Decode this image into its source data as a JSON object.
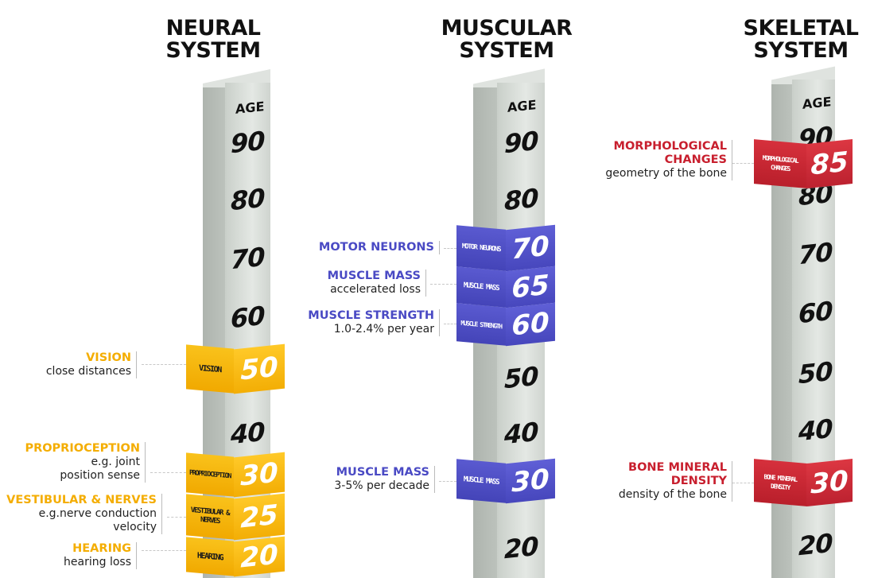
{
  "columns": [
    {
      "title_line1": "NEURAL",
      "title_line2": "SYSTEM",
      "age_label": "AGE",
      "ticks": [
        "90",
        "80",
        "70",
        "60",
        "40"
      ],
      "bands": [
        {
          "label": "VISION",
          "value": "50"
        },
        {
          "label": "PROPRIOCEPTION",
          "value": "30"
        },
        {
          "label": "VESTIBULAR & NERVES",
          "value": "25"
        },
        {
          "label": "HEARING",
          "value": "20"
        }
      ],
      "callouts": [
        {
          "heading": "VISION",
          "desc": "close distances"
        },
        {
          "heading": "PROPRIOCEPTION",
          "desc": "e.g. joint position sense"
        },
        {
          "heading": "VESTIBULAR & NERVES",
          "desc": "e.g.nerve conduction velocity"
        },
        {
          "heading": "HEARING",
          "desc": "hearing loss"
        }
      ],
      "color": "#f4ad00"
    },
    {
      "title_line1": "MUSCULAR",
      "title_line2": "SYSTEM",
      "age_label": "AGE",
      "ticks": [
        "90",
        "80",
        "50",
        "40",
        "20"
      ],
      "bands": [
        {
          "label": "MOTOR NEURONS",
          "value": "70"
        },
        {
          "label": "MUSCLE MASS",
          "value": "65"
        },
        {
          "label": "MUSCLE STRENGTH",
          "value": "60"
        },
        {
          "label": "MUSCLE MASS",
          "value": "30"
        }
      ],
      "callouts": [
        {
          "heading": "MOTOR NEURONS",
          "desc": ""
        },
        {
          "heading": "MUSCLE MASS",
          "desc": "accelerated loss"
        },
        {
          "heading": "MUSCLE STRENGTH",
          "desc": "1.0-2.4% per year"
        },
        {
          "heading": "MUSCLE MASS",
          "desc": "3-5% per decade"
        }
      ],
      "color": "#4a4ac4"
    },
    {
      "title_line1": "SKELETAL",
      "title_line2": "SYSTEM",
      "age_label": "AGE",
      "ticks": [
        "90",
        "80",
        "70",
        "60",
        "50",
        "40",
        "20"
      ],
      "bands": [
        {
          "label": "MORPHOLOGICAL CHANGES",
          "value": "85"
        },
        {
          "label": "BONE MINERAL DENSITY",
          "value": "30"
        }
      ],
      "callouts": [
        {
          "heading": "MORPHOLOGICAL CHANGES",
          "desc": "geometry of the bone"
        },
        {
          "heading": "BONE MINERAL DENSITY",
          "desc": "density of the bone"
        }
      ],
      "color": "#c81f2e"
    }
  ]
}
